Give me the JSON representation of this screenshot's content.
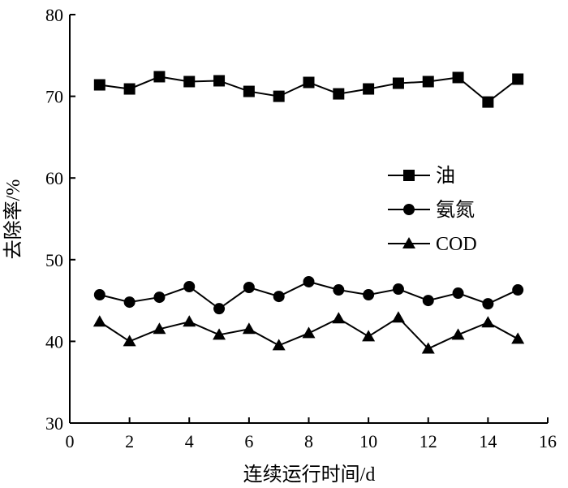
{
  "chart_data": {
    "type": "line",
    "title": "",
    "xlabel": "连续运行时间/d",
    "ylabel": "去除率/%",
    "xlim": [
      0,
      16
    ],
    "ylim": [
      30,
      80
    ],
    "xticks": [
      0,
      2,
      4,
      6,
      8,
      10,
      12,
      14,
      16
    ],
    "yticks": [
      30,
      40,
      50,
      60,
      70,
      80
    ],
    "grid": false,
    "legend_position": "right",
    "x": [
      1,
      2,
      3,
      4,
      5,
      6,
      7,
      8,
      9,
      10,
      11,
      12,
      13,
      14,
      15
    ],
    "series": [
      {
        "name": "油",
        "marker": "square",
        "values": [
          71.4,
          70.9,
          72.4,
          71.8,
          71.9,
          70.6,
          70.0,
          71.7,
          70.3,
          70.9,
          71.6,
          71.8,
          72.3,
          69.3,
          72.1
        ]
      },
      {
        "name": "氨氮",
        "marker": "circle",
        "values": [
          45.7,
          44.8,
          45.4,
          46.7,
          44.0,
          46.6,
          45.5,
          47.3,
          46.3,
          45.7,
          46.4,
          45.0,
          45.9,
          44.6,
          46.3
        ]
      },
      {
        "name": "COD",
        "marker": "triangle",
        "values": [
          42.4,
          40.0,
          41.5,
          42.4,
          40.8,
          41.5,
          39.5,
          41.0,
          42.8,
          40.6,
          42.9,
          39.1,
          40.8,
          42.3,
          40.3
        ]
      }
    ],
    "colors": {
      "line": "#000000",
      "marker": "#000000"
    }
  }
}
